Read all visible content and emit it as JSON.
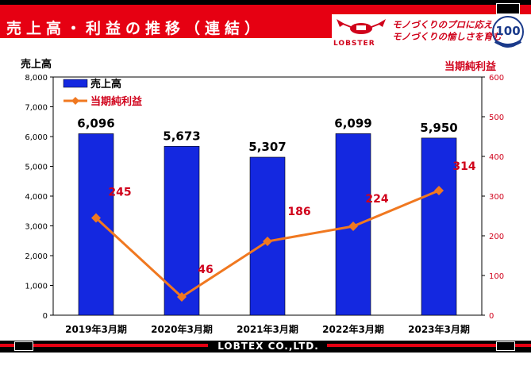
{
  "header": {
    "title": "売上高・利益の推移（連結）",
    "logo_text": "LOBSTER",
    "slogan_line1": "モノづくりのプロに応え",
    "slogan_line2": "モノづくりの愉しさを育む",
    "badge_text": "100"
  },
  "footer": {
    "company": "LOBTEX CO.,LTD."
  },
  "colors": {
    "accent": "#e60012",
    "bar": "#1428e0",
    "line": "#f07820"
  },
  "chart_data": {
    "type": "bar",
    "categories": [
      "2019年3月期",
      "2020年3月期",
      "2021年3月期",
      "2022年3月期",
      "2023年3月期"
    ],
    "series": [
      {
        "name": "売上高",
        "type": "bar",
        "axis": "left",
        "values": [
          6096,
          5673,
          5307,
          6099,
          5950
        ],
        "labels": [
          "6,096",
          "5,673",
          "5,307",
          "6,099",
          "5,950"
        ]
      },
      {
        "name": "当期純利益",
        "type": "line",
        "axis": "right",
        "values": [
          245,
          46,
          186,
          224,
          314
        ],
        "labels": [
          "245",
          "46",
          "186",
          "224",
          "314"
        ]
      }
    ],
    "ylabel_left": "売上高",
    "ylabel_right": "当期純利益",
    "ylim_left": [
      0,
      8000
    ],
    "ylim_right": [
      0,
      600
    ],
    "yticks_left": [
      "0",
      "1,000",
      "2,000",
      "3,000",
      "4,000",
      "5,000",
      "6,000",
      "7,000",
      "8,000"
    ],
    "yticks_right": [
      "0",
      "100",
      "200",
      "300",
      "400",
      "500",
      "600"
    ],
    "legend": "top-left"
  }
}
